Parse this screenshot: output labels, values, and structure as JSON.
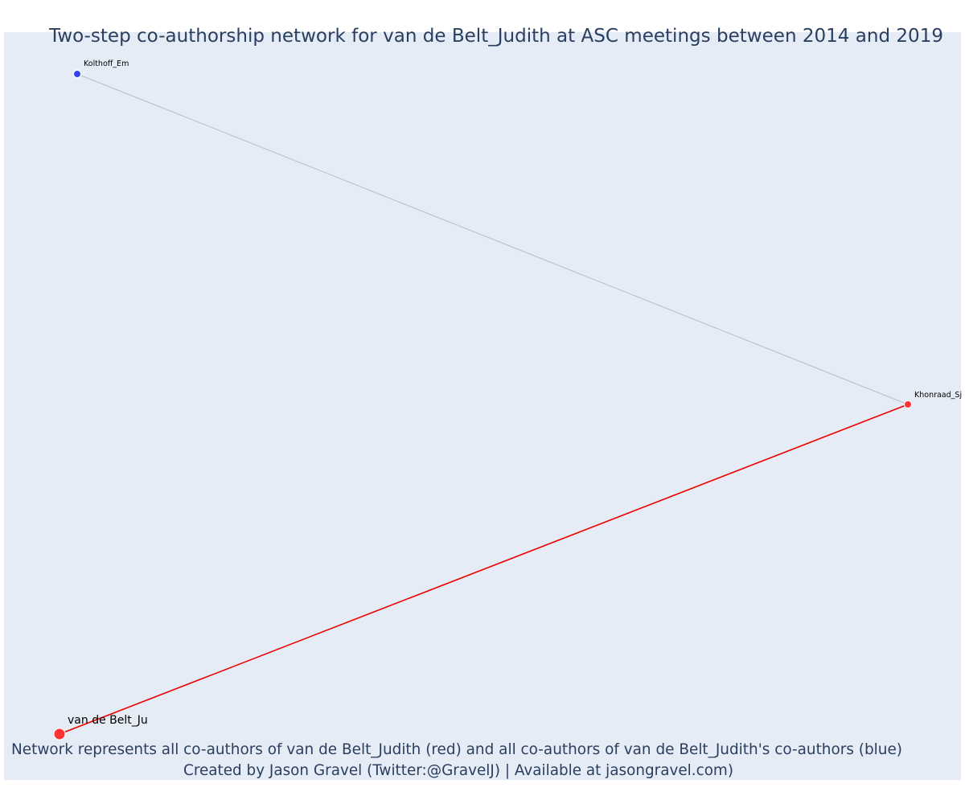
{
  "title": "Two-step co-authorship network for van de Belt_Judith at ASC meetings between 2014 and 2019",
  "caption": {
    "line1": "Network represents all co-authors of van de Belt_Judith (red) and all co-authors of van de Belt_Judith's co-authors (blue)",
    "line2": "Created by Jason Gravel (Twitter:@GravelJ) | Available at jasongravel.com)"
  },
  "colors": {
    "background": "#e5ecf6",
    "title": "#2a3f5f",
    "first_degree": "#ff3333",
    "second_degree": "#3344ee",
    "first_degree_edge": "#ee0000",
    "second_degree_edge": "#b8bccb"
  },
  "nodes": [
    {
      "id": "focal",
      "label": "van de Belt_Ju",
      "group": "focal"
    },
    {
      "id": "khonraad",
      "label": "Khonraad_Sj",
      "group": "first_degree"
    },
    {
      "id": "kolthoff",
      "label": "Kolthoff_Em",
      "group": "second_degree"
    }
  ],
  "edges": [
    {
      "from": "focal",
      "to": "khonraad",
      "type": "first_degree"
    },
    {
      "from": "khonraad",
      "to": "kolthoff",
      "type": "second_degree"
    }
  ]
}
